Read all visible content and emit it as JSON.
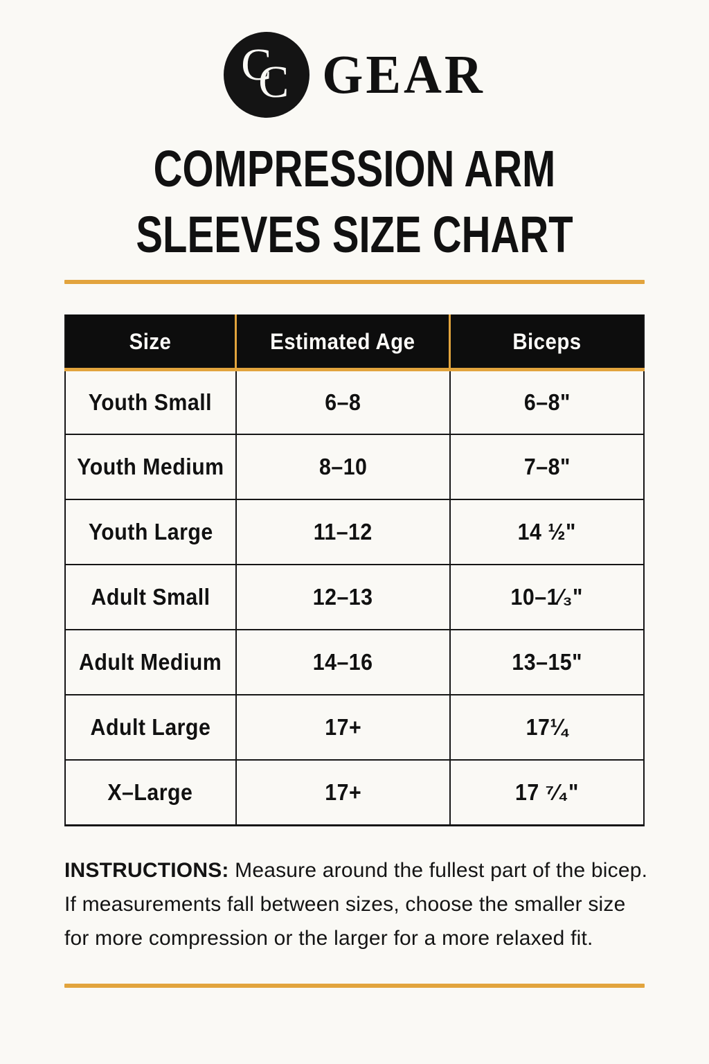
{
  "colors": {
    "background": "#faf9f5",
    "accent_gold": "#e2a43d",
    "ink_black": "#111111",
    "header_bg": "#0d0d0d",
    "header_text": "#fbfaf7"
  },
  "logo": {
    "monogram_c1": "C",
    "monogram_c2": "C",
    "brand": "GEAR"
  },
  "title": {
    "line1": "COMPRESSION ARM",
    "line2": "SLEEVES SIZE CHART"
  },
  "table": {
    "headers": [
      "Size",
      "Estimated Age",
      "Biceps"
    ],
    "rows": [
      [
        "Youth Small",
        "6–8",
        "6–8\""
      ],
      [
        "Youth Medium",
        "8–10",
        "7–8\""
      ],
      [
        "Youth Large",
        "11–12",
        "14 ½\""
      ],
      [
        "Adult Small",
        "12–13",
        "10–1⁄₃\""
      ],
      [
        "Adult Medium",
        "14–16",
        "13–15\""
      ],
      [
        "Adult Large",
        "17+",
        "17¼"
      ],
      [
        "X–Large",
        "17+",
        "17 ⁷⁄₄\""
      ]
    ]
  },
  "instructions": {
    "label": "INSTRUCTIONS:",
    "text": " Measure around the fullest part of the bicep. If measurements fall between sizes, choose the smaller size for more compression or the larger for a more relaxed fit."
  }
}
